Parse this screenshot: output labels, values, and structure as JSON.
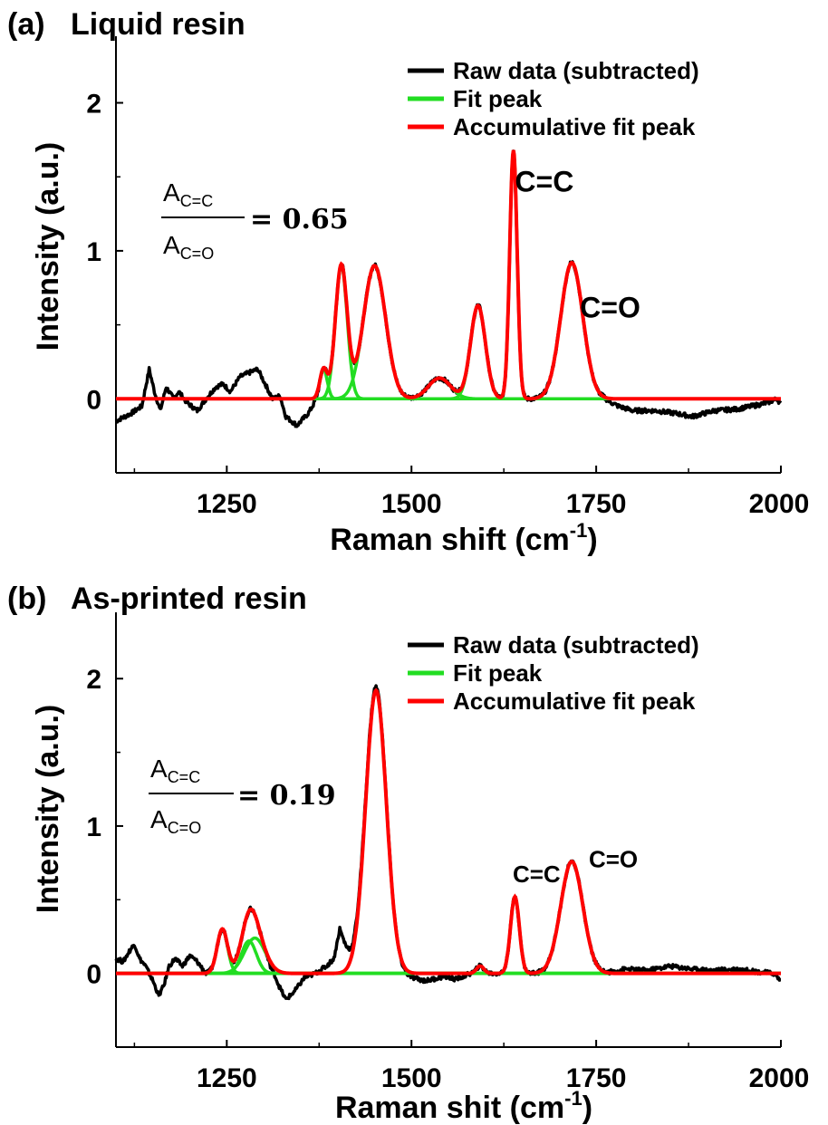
{
  "chart_data": [
    {
      "type": "line",
      "panel_label": "(a)",
      "title": "Liquid resin",
      "xlabel": "Raman shift (cm",
      "xlabel_sup": "-1",
      "xlabel_end": ")",
      "ylabel": "Intensity (a.u.)",
      "xlim": [
        1100,
        2000
      ],
      "ylim": [
        -0.5,
        2.45
      ],
      "xticks": [
        1250,
        1500,
        1750,
        2000
      ],
      "yticks": [
        0,
        1,
        2
      ],
      "legend_position": "top-right",
      "legend": [
        {
          "label": "Raw data (subtracted)",
          "color": "#000000"
        },
        {
          "label": "Fit peak",
          "color": "#22dd22"
        },
        {
          "label": "Accumulative fit peak",
          "color": "#ff0000"
        }
      ],
      "ratio": {
        "numerator": "A",
        "numerator_sub": "C=C",
        "denominator": "A",
        "denominator_sub": "C=O",
        "value": "= 0.65"
      },
      "annotations": [
        {
          "text": "C=C",
          "x": 1640,
          "y": 1.4
        },
        {
          "text": "C=O",
          "x": 1728,
          "y": 0.55
        }
      ],
      "fit_peaks": [
        {
          "center": 1381,
          "height": 0.2,
          "width": 5
        },
        {
          "center": 1405,
          "height": 0.9,
          "width": 8
        },
        {
          "center": 1450,
          "height": 0.9,
          "width": 15
        },
        {
          "center": 1538,
          "height": 0.14,
          "width": 15
        },
        {
          "center": 1590,
          "height": 0.63,
          "width": 10
        },
        {
          "center": 1638,
          "height": 1.68,
          "width": 5
        },
        {
          "center": 1717,
          "height": 0.92,
          "width": 15
        }
      ],
      "fit_range": [
        1100,
        2000
      ],
      "raw_baseline": [
        [
          1100,
          -0.15
        ],
        [
          1120,
          -0.1
        ],
        [
          1135,
          -0.05
        ],
        [
          1145,
          0.2
        ],
        [
          1152,
          0.05
        ],
        [
          1160,
          -0.08
        ],
        [
          1168,
          0.08
        ],
        [
          1178,
          0.0
        ],
        [
          1185,
          0.05
        ],
        [
          1195,
          -0.02
        ],
        [
          1210,
          -0.08
        ],
        [
          1222,
          0.0
        ],
        [
          1235,
          0.08
        ],
        [
          1245,
          0.1
        ],
        [
          1255,
          0.05
        ],
        [
          1268,
          0.15
        ],
        [
          1282,
          0.18
        ],
        [
          1292,
          0.2
        ],
        [
          1300,
          0.12
        ],
        [
          1312,
          0.0
        ],
        [
          1322,
          0.02
        ],
        [
          1330,
          -0.12
        ],
        [
          1345,
          -0.18
        ],
        [
          1360,
          -0.1
        ],
        [
          1370,
          -0.02
        ],
        [
          1380,
          0.0
        ],
        [
          1760,
          0.0
        ],
        [
          1780,
          -0.05
        ],
        [
          1800,
          -0.08
        ],
        [
          1830,
          -0.08
        ],
        [
          1860,
          -0.1
        ],
        [
          1880,
          -0.12
        ],
        [
          1910,
          -0.08
        ],
        [
          1940,
          -0.07
        ],
        [
          1970,
          -0.04
        ],
        [
          1985,
          -0.02
        ],
        [
          1995,
          0.0
        ],
        [
          2000,
          -0.04
        ]
      ]
    },
    {
      "type": "line",
      "panel_label": "(b)",
      "title": "As-printed resin",
      "xlabel": "Raman shit (cm",
      "xlabel_sup": "-1",
      "xlabel_end": ")",
      "ylabel": "Intensity (a.u.)",
      "xlim": [
        1100,
        2000
      ],
      "ylim": [
        -0.5,
        2.45
      ],
      "xticks": [
        1250,
        1500,
        1750,
        2000
      ],
      "yticks": [
        0,
        1,
        2
      ],
      "legend_position": "top-right",
      "legend": [
        {
          "label": "Raw data (subtracted)",
          "color": "#000000"
        },
        {
          "label": "Fit peak",
          "color": "#22dd22"
        },
        {
          "label": "Accumulative fit peak",
          "color": "#ff0000"
        }
      ],
      "ratio": {
        "numerator": "A",
        "numerator_sub": "C=C",
        "denominator": "A",
        "denominator_sub": "C=O",
        "value": "= 0.19"
      },
      "annotations": [
        {
          "text": "C=C",
          "x": 1637,
          "y": 0.62
        },
        {
          "text": "C=O",
          "x": 1740,
          "y": 0.72
        }
      ],
      "fit_peaks": [
        {
          "center": 1244,
          "height": 0.3,
          "width": 7
        },
        {
          "center": 1288,
          "height": 0.24,
          "width": 14
        },
        {
          "center": 1280,
          "height": 0.22,
          "width": 10
        },
        {
          "center": 1452,
          "height": 1.92,
          "width": 14
        },
        {
          "center": 1593,
          "height": 0.05,
          "width": 5
        },
        {
          "center": 1640,
          "height": 0.52,
          "width": 6
        },
        {
          "center": 1717,
          "height": 0.76,
          "width": 15
        }
      ],
      "fit_range": [
        1100,
        2000
      ],
      "raw_baseline": [
        [
          1100,
          0.1
        ],
        [
          1110,
          0.08
        ],
        [
          1118,
          0.15
        ],
        [
          1125,
          0.2
        ],
        [
          1132,
          0.1
        ],
        [
          1140,
          0.05
        ],
        [
          1150,
          -0.05
        ],
        [
          1158,
          -0.15
        ],
        [
          1165,
          -0.08
        ],
        [
          1172,
          0.05
        ],
        [
          1180,
          0.1
        ],
        [
          1190,
          0.05
        ],
        [
          1200,
          0.12
        ],
        [
          1210,
          0.08
        ],
        [
          1222,
          0.0
        ],
        [
          1300,
          0.0
        ],
        [
          1315,
          -0.05
        ],
        [
          1330,
          -0.18
        ],
        [
          1342,
          -0.12
        ],
        [
          1355,
          -0.03
        ],
        [
          1370,
          0.0
        ],
        [
          1385,
          0.05
        ],
        [
          1395,
          0.1
        ],
        [
          1403,
          0.3
        ],
        [
          1412,
          0.15
        ],
        [
          1420,
          0.05
        ],
        [
          1480,
          0.0
        ],
        [
          1500,
          -0.03
        ],
        [
          1520,
          -0.05
        ],
        [
          1545,
          -0.02
        ],
        [
          1560,
          -0.04
        ],
        [
          1580,
          0.0
        ],
        [
          1760,
          0.0
        ],
        [
          1790,
          0.03
        ],
        [
          1820,
          0.02
        ],
        [
          1850,
          0.05
        ],
        [
          1880,
          0.03
        ],
        [
          1910,
          0.02
        ],
        [
          1940,
          0.03
        ],
        [
          1970,
          0.01
        ],
        [
          1990,
          0.0
        ],
        [
          2000,
          -0.05
        ]
      ]
    }
  ]
}
